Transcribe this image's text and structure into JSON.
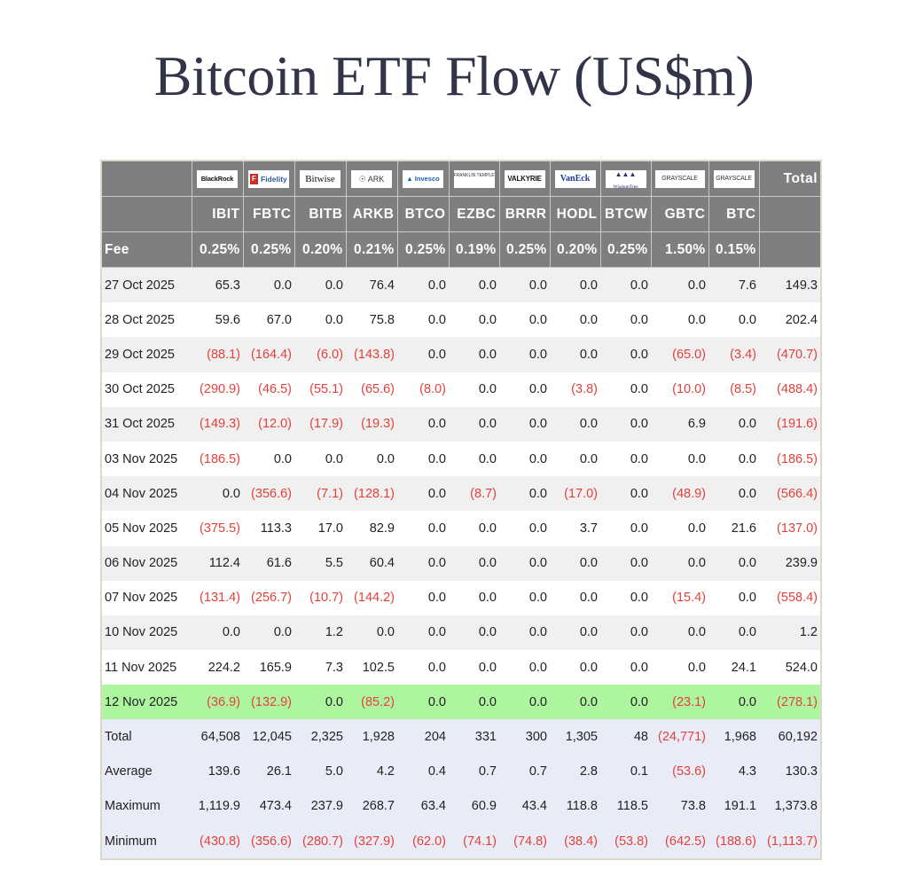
{
  "title": "Bitcoin ETF Flow (US$m)",
  "colors": {
    "header_bg": "#7f7f7f",
    "negative": "#e5413b",
    "highlight_row": "#aef59f",
    "summary_bg": "#e9ecf7",
    "stripe": "#f0f0f0"
  },
  "header": {
    "issuers": [
      {
        "name": "BlackRock",
        "logo_text": "BlackRock"
      },
      {
        "name": "Fidelity",
        "logo_text": "Fidelity"
      },
      {
        "name": "Bitwise",
        "logo_text": "Bitwise"
      },
      {
        "name": "ARK Invest",
        "logo_text": "ARK"
      },
      {
        "name": "Invesco",
        "logo_text": "Invesco"
      },
      {
        "name": "Franklin Templeton",
        "logo_text": "FRANKLIN TEMPLETON"
      },
      {
        "name": "Valkyrie",
        "logo_text": "VALKYRIE"
      },
      {
        "name": "VanEck",
        "logo_text": "VanEck"
      },
      {
        "name": "WisdomTree",
        "logo_text": "WisdomTree"
      },
      {
        "name": "Grayscale",
        "logo_text": "GRAYSCALE"
      },
      {
        "name": "Grayscale",
        "logo_text": "GRAYSCALE"
      }
    ],
    "total_label": "Total",
    "tickers": [
      "IBIT",
      "FBTC",
      "BITB",
      "ARKB",
      "BTCO",
      "EZBC",
      "BRRR",
      "HODL",
      "BTCW",
      "GBTC",
      "BTC"
    ],
    "fee_label": "Fee",
    "fees": [
      "0.25%",
      "0.25%",
      "0.20%",
      "0.21%",
      "0.25%",
      "0.19%",
      "0.25%",
      "0.20%",
      "0.25%",
      "1.50%",
      "0.15%"
    ]
  },
  "rows": [
    {
      "date": "27 Oct 2025",
      "values": [
        "65.3",
        "0.0",
        "0.0",
        "76.4",
        "0.0",
        "0.0",
        "0.0",
        "0.0",
        "0.0",
        "0.0",
        "7.6"
      ],
      "total": "149.3"
    },
    {
      "date": "28 Oct 2025",
      "values": [
        "59.6",
        "67.0",
        "0.0",
        "75.8",
        "0.0",
        "0.0",
        "0.0",
        "0.0",
        "0.0",
        "0.0",
        "0.0"
      ],
      "total": "202.4"
    },
    {
      "date": "29 Oct 2025",
      "values": [
        "(88.1)",
        "(164.4)",
        "(6.0)",
        "(143.8)",
        "0.0",
        "0.0",
        "0.0",
        "0.0",
        "0.0",
        "(65.0)",
        "(3.4)"
      ],
      "total": "(470.7)"
    },
    {
      "date": "30 Oct 2025",
      "values": [
        "(290.9)",
        "(46.5)",
        "(55.1)",
        "(65.6)",
        "(8.0)",
        "0.0",
        "0.0",
        "(3.8)",
        "0.0",
        "(10.0)",
        "(8.5)"
      ],
      "total": "(488.4)"
    },
    {
      "date": "31 Oct 2025",
      "values": [
        "(149.3)",
        "(12.0)",
        "(17.9)",
        "(19.3)",
        "0.0",
        "0.0",
        "0.0",
        "0.0",
        "0.0",
        "6.9",
        "0.0"
      ],
      "total": "(191.6)"
    },
    {
      "date": "03 Nov 2025",
      "values": [
        "(186.5)",
        "0.0",
        "0.0",
        "0.0",
        "0.0",
        "0.0",
        "0.0",
        "0.0",
        "0.0",
        "0.0",
        "0.0"
      ],
      "total": "(186.5)"
    },
    {
      "date": "04 Nov 2025",
      "values": [
        "0.0",
        "(356.6)",
        "(7.1)",
        "(128.1)",
        "0.0",
        "(8.7)",
        "0.0",
        "(17.0)",
        "0.0",
        "(48.9)",
        "0.0"
      ],
      "total": "(566.4)"
    },
    {
      "date": "05 Nov 2025",
      "values": [
        "(375.5)",
        "113.3",
        "17.0",
        "82.9",
        "0.0",
        "0.0",
        "0.0",
        "3.7",
        "0.0",
        "0.0",
        "21.6"
      ],
      "total": "(137.0)"
    },
    {
      "date": "06 Nov 2025",
      "values": [
        "112.4",
        "61.6",
        "5.5",
        "60.4",
        "0.0",
        "0.0",
        "0.0",
        "0.0",
        "0.0",
        "0.0",
        "0.0"
      ],
      "total": "239.9"
    },
    {
      "date": "07 Nov 2025",
      "values": [
        "(131.4)",
        "(256.7)",
        "(10.7)",
        "(144.2)",
        "0.0",
        "0.0",
        "0.0",
        "0.0",
        "0.0",
        "(15.4)",
        "0.0"
      ],
      "total": "(558.4)"
    },
    {
      "date": "10 Nov 2025",
      "values": [
        "0.0",
        "0.0",
        "1.2",
        "0.0",
        "0.0",
        "0.0",
        "0.0",
        "0.0",
        "0.0",
        "0.0",
        "0.0"
      ],
      "total": "1.2"
    },
    {
      "date": "11 Nov 2025",
      "values": [
        "224.2",
        "165.9",
        "7.3",
        "102.5",
        "0.0",
        "0.0",
        "0.0",
        "0.0",
        "0.0",
        "0.0",
        "24.1"
      ],
      "total": "524.0"
    },
    {
      "date": "12 Nov 2025",
      "values": [
        "(36.9)",
        "(132.9)",
        "0.0",
        "(85.2)",
        "0.0",
        "0.0",
        "0.0",
        "0.0",
        "0.0",
        "(23.1)",
        "0.0"
      ],
      "total": "(278.1)",
      "highlight": true
    }
  ],
  "summary": [
    {
      "label": "Total",
      "values": [
        "64,508",
        "12,045",
        "2,325",
        "1,928",
        "204",
        "331",
        "300",
        "1,305",
        "48",
        "(24,771)",
        "1,968"
      ],
      "total": "60,192"
    },
    {
      "label": "Average",
      "values": [
        "139.6",
        "26.1",
        "5.0",
        "4.2",
        "0.4",
        "0.7",
        "0.7",
        "2.8",
        "0.1",
        "(53.6)",
        "4.3"
      ],
      "total": "130.3"
    },
    {
      "label": "Maximum",
      "values": [
        "1,119.9",
        "473.4",
        "237.9",
        "268.7",
        "63.4",
        "60.9",
        "43.4",
        "118.8",
        "118.5",
        "73.8",
        "191.1"
      ],
      "total": "1,373.8"
    },
    {
      "label": "Minimum",
      "values": [
        "(430.8)",
        "(356.6)",
        "(280.7)",
        "(327.9)",
        "(62.0)",
        "(74.1)",
        "(74.8)",
        "(38.4)",
        "(53.8)",
        "(642.5)",
        "(188.6)"
      ],
      "total": "(1,113.7)"
    }
  ]
}
